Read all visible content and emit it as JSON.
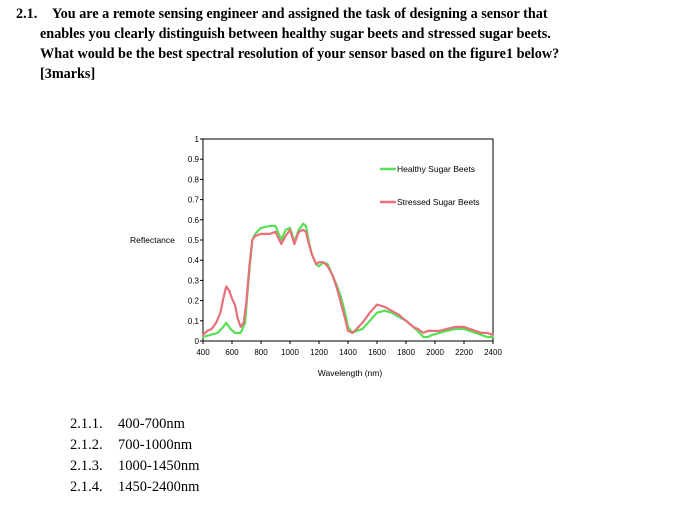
{
  "question": {
    "number": "2.1.",
    "lines": [
      "You are a remote sensing engineer and assigned the task of designing a sensor that",
      "enables you clearly distinguish between healthy sugar beets and stressed sugar beets.",
      "What would be the best spectral resolution of your sensor based on the figure1 below?",
      "[3marks]"
    ]
  },
  "chart_data": {
    "type": "line",
    "title": "",
    "xlabel": "Wavelength (nm)",
    "ylabel": "Reflectance",
    "xlim": [
      400,
      2400
    ],
    "ylim": [
      0,
      1
    ],
    "x_ticks": [
      "400",
      "600",
      "800",
      "1000",
      "1200",
      "1400",
      "1600",
      "1800",
      "2000",
      "2200",
      "2400"
    ],
    "y_ticks": [
      "0",
      "0.1",
      "0.2",
      "0.3",
      "0.4",
      "0.5",
      "0.6",
      "0.7",
      "0.8",
      "0.9",
      "1"
    ],
    "legend_position": "top-right",
    "series": [
      {
        "name": "Healthy Sugar Beets",
        "color": "#55e055",
        "x": [
          400,
          450,
          500,
          540,
          560,
          590,
          620,
          660,
          690,
          700,
          720,
          740,
          760,
          800,
          860,
          900,
          940,
          970,
          1000,
          1030,
          1060,
          1090,
          1110,
          1130,
          1150,
          1180,
          1200,
          1230,
          1260,
          1290,
          1320,
          1350,
          1380,
          1400,
          1430,
          1460,
          1500,
          1550,
          1600,
          1650,
          1700,
          1750,
          1800,
          1850,
          1880,
          1920,
          1950,
          1980,
          2030,
          2080,
          2140,
          2200,
          2240,
          2280,
          2320,
          2360,
          2400
        ],
        "y": [
          0.02,
          0.03,
          0.04,
          0.07,
          0.09,
          0.06,
          0.04,
          0.04,
          0.09,
          0.18,
          0.35,
          0.5,
          0.53,
          0.56,
          0.57,
          0.57,
          0.5,
          0.55,
          0.56,
          0.49,
          0.55,
          0.58,
          0.57,
          0.49,
          0.43,
          0.38,
          0.37,
          0.39,
          0.38,
          0.33,
          0.28,
          0.22,
          0.14,
          0.07,
          0.04,
          0.05,
          0.06,
          0.1,
          0.14,
          0.15,
          0.14,
          0.12,
          0.1,
          0.07,
          0.05,
          0.02,
          0.02,
          0.03,
          0.04,
          0.05,
          0.06,
          0.06,
          0.05,
          0.04,
          0.03,
          0.02,
          0.02
        ]
      },
      {
        "name": "Stressed Sugar Beets",
        "color": "#e8707a",
        "x": [
          400,
          430,
          460,
          490,
          520,
          540,
          560,
          580,
          600,
          620,
          640,
          660,
          680,
          700,
          720,
          740,
          760,
          800,
          860,
          900,
          940,
          970,
          1000,
          1030,
          1060,
          1090,
          1110,
          1130,
          1150,
          1180,
          1200,
          1230,
          1260,
          1290,
          1320,
          1350,
          1380,
          1400,
          1430,
          1460,
          1500,
          1550,
          1600,
          1650,
          1700,
          1750,
          1800,
          1850,
          1880,
          1920,
          1950,
          1980,
          2030,
          2080,
          2140,
          2200,
          2240,
          2280,
          2320,
          2360,
          2400
        ],
        "y": [
          0.03,
          0.05,
          0.06,
          0.09,
          0.14,
          0.21,
          0.27,
          0.25,
          0.21,
          0.18,
          0.11,
          0.07,
          0.09,
          0.2,
          0.37,
          0.5,
          0.52,
          0.53,
          0.53,
          0.54,
          0.48,
          0.52,
          0.55,
          0.48,
          0.54,
          0.55,
          0.54,
          0.48,
          0.43,
          0.38,
          0.39,
          0.39,
          0.37,
          0.33,
          0.27,
          0.19,
          0.11,
          0.05,
          0.04,
          0.06,
          0.09,
          0.14,
          0.18,
          0.17,
          0.15,
          0.13,
          0.1,
          0.07,
          0.06,
          0.04,
          0.05,
          0.05,
          0.05,
          0.06,
          0.07,
          0.07,
          0.06,
          0.05,
          0.04,
          0.04,
          0.03
        ]
      }
    ]
  },
  "options": [
    {
      "number": "2.1.1.",
      "text": "400-700nm"
    },
    {
      "number": "2.1.2.",
      "text": "700-1000nm"
    },
    {
      "number": "2.1.3.",
      "text": "1000-1450nm"
    },
    {
      "number": "2.1.4.",
      "text": "1450-2400nm"
    }
  ]
}
